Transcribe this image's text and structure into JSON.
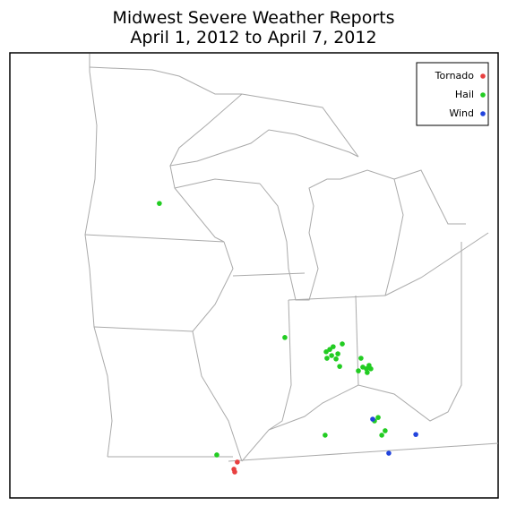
{
  "map": {
    "title": [
      "Midwest Severe Weather Reports",
      "April 1, 2012 to April 7, 2012"
    ],
    "series": [
      {
        "name": "Tornado",
        "color": "#e84040",
        "lon": [
          -89.47,
          -89.6,
          -89.57
        ],
        "lat": [
          36.97,
          36.76,
          36.68
        ]
      },
      {
        "name": "Hail",
        "color": "#22cc22",
        "lon": [
          -92.47,
          -87.64,
          -90.26,
          -86.09,
          -86.05,
          -85.91,
          -85.78,
          -85.84,
          -85.67,
          -85.6,
          -85.53,
          -85.43,
          -86.02,
          -84.71,
          -84.64,
          -84.5,
          -84.4,
          -84.47,
          -84.81,
          -84.33,
          -84.05,
          -84.19,
          -83.78,
          -83.91
        ],
        "lat": [
          44.57,
          40.63,
          37.18,
          37.76,
          40.21,
          40.28,
          40.36,
          40.1,
          40.0,
          40.15,
          39.78,
          40.44,
          40.02,
          40.02,
          39.76,
          39.71,
          39.81,
          39.6,
          39.65,
          39.71,
          38.28,
          38.18,
          37.89,
          37.76
        ]
      },
      {
        "name": "Wind",
        "color": "#2244dd",
        "lon": [
          -84.26,
          -82.6,
          -83.64
        ],
        "lat": [
          38.23,
          37.78,
          37.23
        ]
      }
    ]
  }
}
